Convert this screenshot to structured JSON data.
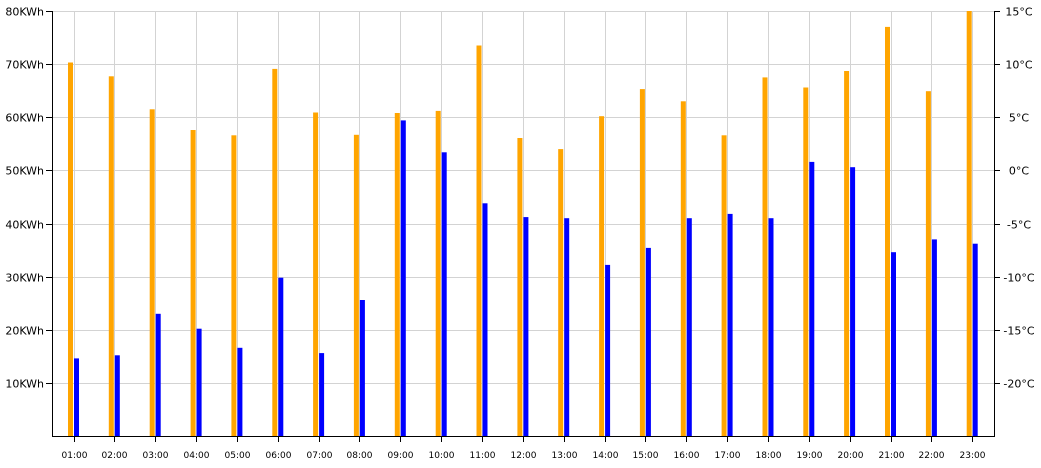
{
  "chart_data": {
    "type": "bar",
    "categories": [
      "01:00",
      "02:00",
      "03:00",
      "04:00",
      "05:00",
      "06:00",
      "07:00",
      "08:00",
      "09:00",
      "10:00",
      "11:00",
      "12:00",
      "13:00",
      "14:00",
      "15:00",
      "16:00",
      "17:00",
      "18:00",
      "19:00",
      "20:00",
      "21:00",
      "22:00",
      "23:00"
    ],
    "series": [
      {
        "axis": "left",
        "color": "#ffa500",
        "values": [
          70.3,
          67.7,
          61.5,
          57.6,
          56.6,
          69.1,
          60.9,
          56.7,
          60.8,
          61.2,
          73.5,
          56.1,
          54.0,
          60.2,
          65.3,
          63.0,
          56.6,
          67.5,
          65.6,
          68.7,
          77.0,
          64.9,
          80.0
        ]
      },
      {
        "axis": "right",
        "color": "#0000ff",
        "values": [
          -17.7,
          -17.4,
          -13.5,
          -14.9,
          -16.7,
          -10.1,
          -17.2,
          -12.2,
          4.7,
          1.7,
          -3.1,
          -4.4,
          -4.5,
          -8.9,
          -7.3,
          -4.5,
          -4.1,
          -4.5,
          0.8,
          0.3,
          -7.7,
          -6.5,
          -6.9
        ]
      }
    ],
    "y_left": {
      "ylim": [
        0,
        80
      ],
      "ticks": [
        10,
        20,
        30,
        40,
        50,
        60,
        70,
        80
      ],
      "tick_labels": [
        "10KWh",
        "20KWh",
        "30KWh",
        "40KWh",
        "50KWh",
        "60KWh",
        "70KWh",
        "80KWh"
      ]
    },
    "y_right": {
      "ylim": [
        -25,
        15
      ],
      "ticks": [
        -20,
        -15,
        -10,
        -5,
        0,
        5,
        10,
        15
      ],
      "tick_labels": [
        "-20°C",
        "-15°C",
        "-10°C",
        "-5°C",
        "0°C",
        "5°C",
        "10°C",
        "15°C"
      ]
    },
    "grid": true,
    "legend": "none"
  }
}
